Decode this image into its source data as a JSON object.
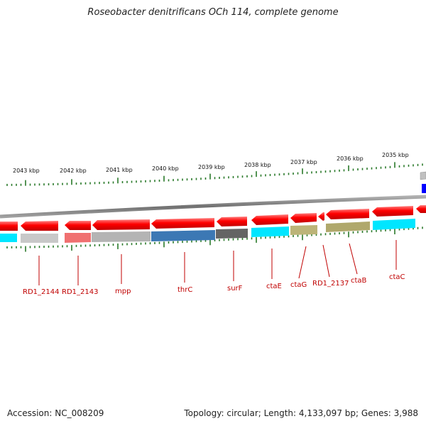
{
  "title": "Roseobacter denitrificans OCh 114, complete genome",
  "footer": {
    "accession": "Accession: NC_008209",
    "summary": "Topology: circular; Length: 4,133,097 bp; Genes: 3,988"
  },
  "scale": {
    "labels": [
      "2043 kbp",
      "2042 kbp",
      "2041 kbp",
      "2040 kbp",
      "2039 kbp",
      "2038 kbp",
      "2037 kbp",
      "2036 kbp",
      "2035 kbp"
    ]
  },
  "genes": [
    {
      "label": "RD1_2144",
      "color": "#c8c8c8"
    },
    {
      "label": "RD1_2143",
      "color": "#f07070"
    },
    {
      "label": "mpp",
      "color": "#b4b4b4"
    },
    {
      "label": "thrC",
      "color": "#3c78b4"
    },
    {
      "label": "surF",
      "color": "#646464"
    },
    {
      "label": "ctaE",
      "color": "#00e6ff"
    },
    {
      "label": "ctaG",
      "color": "#bcb478"
    },
    {
      "label": "RD1_2137",
      "color": "#ffffff"
    },
    {
      "label": "ctaB",
      "color": "#b0a86c"
    },
    {
      "label": "ctaC",
      "color": "#00e6ff"
    }
  ],
  "colors": {
    "strand_arrow": "#ff0000",
    "backbone": "#808080",
    "tick": "#2a7a2a",
    "gene_label": "#c00000",
    "edge_blue": "#0000ff"
  }
}
